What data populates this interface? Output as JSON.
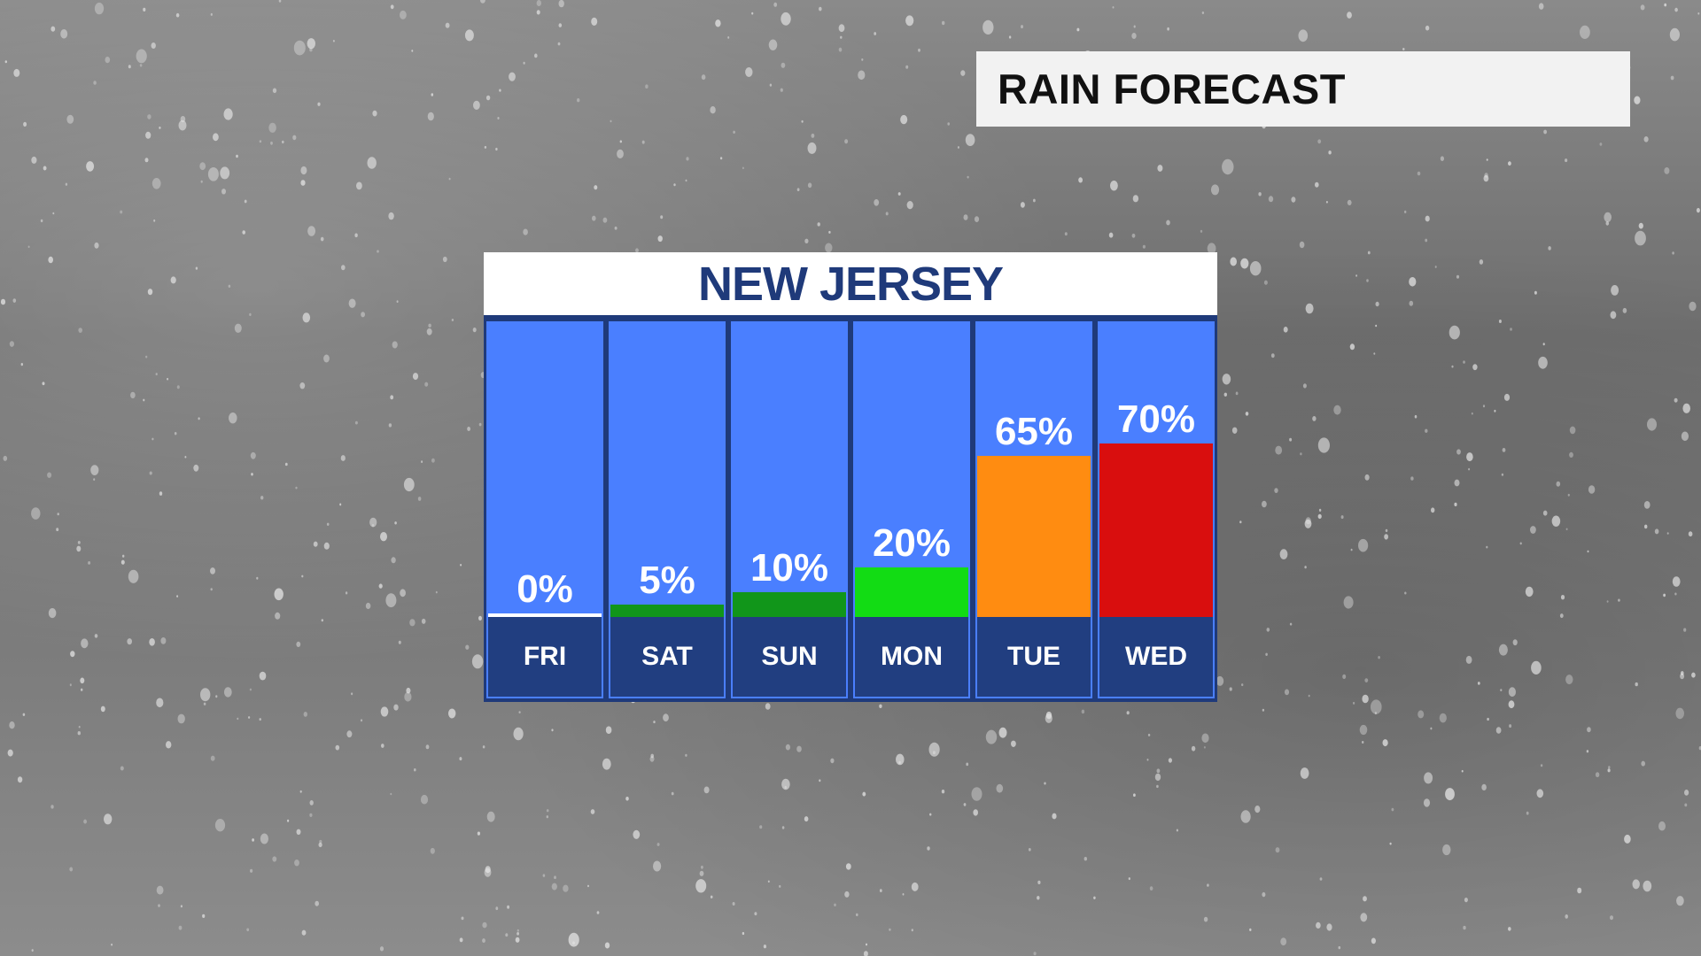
{
  "header": {
    "title": "RAIN FORECAST"
  },
  "chart_data": {
    "type": "bar",
    "title": "NEW JERSEY",
    "categories": [
      "FRI",
      "SAT",
      "SUN",
      "MON",
      "TUE",
      "WED"
    ],
    "values": [
      0,
      5,
      10,
      20,
      65,
      70
    ],
    "labels": [
      "0%",
      "5%",
      "10%",
      "20%",
      "65%",
      "70%"
    ],
    "bar_colors": [
      "#ffffff",
      "#11961a",
      "#11961a",
      "#12dc14",
      "#ff8c11",
      "#d90e0e"
    ],
    "ylim": [
      0,
      100
    ],
    "background_color": "#4a7fff",
    "label_band_color": "#213e80"
  }
}
